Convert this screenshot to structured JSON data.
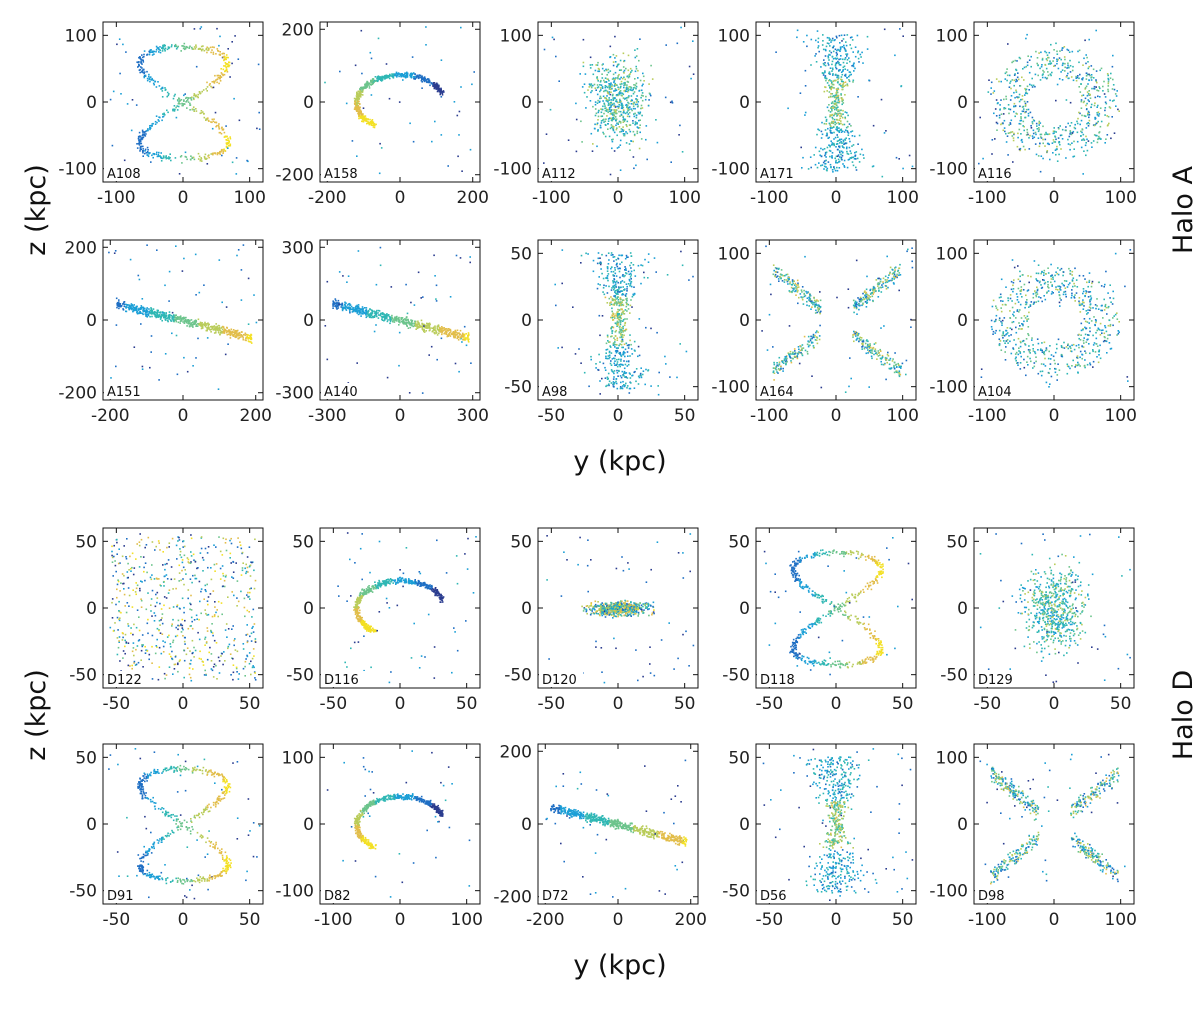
{
  "figure": {
    "type": "scatter-grid",
    "colormap": [
      "#2b3c8f",
      "#1f6fc4",
      "#1b9fd6",
      "#2fb7b4",
      "#6cc48c",
      "#b9cc5a",
      "#e2bd4a",
      "#f3e024"
    ]
  },
  "chart_data": [
    {
      "type": "scatter",
      "group": "Halo A",
      "group_label": "Halo A",
      "xlabel": "y (kpc)",
      "ylabel": "z (kpc)",
      "panels": [
        {
          "id": "A108",
          "xlim": [
            -120,
            120
          ],
          "ylim": [
            -120,
            120
          ],
          "xticks": [
            -100,
            0,
            100
          ],
          "yticks": [
            -100,
            0,
            100
          ],
          "xtick_labels": [
            "-100",
            "0",
            "100"
          ],
          "ytick_labels": [
            "-100",
            "0",
            "100"
          ],
          "pattern": "loops"
        },
        {
          "id": "A158",
          "xlim": [
            -220,
            220
          ],
          "ylim": [
            -220,
            220
          ],
          "xticks": [
            -200,
            0,
            200
          ],
          "yticks": [
            -200,
            0,
            200
          ],
          "xtick_labels": [
            "-200",
            "0",
            "200"
          ],
          "ytick_labels": [
            "-200",
            "0",
            "200"
          ],
          "pattern": "arc"
        },
        {
          "id": "A112",
          "xlim": [
            -120,
            120
          ],
          "ylim": [
            -120,
            120
          ],
          "xticks": [
            -100,
            0,
            100
          ],
          "yticks": [
            -100,
            0,
            100
          ],
          "xtick_labels": [
            "-100",
            "0",
            "100"
          ],
          "ytick_labels": [
            "-100",
            "0",
            "100"
          ],
          "pattern": "blob"
        },
        {
          "id": "A171",
          "xlim": [
            -120,
            120
          ],
          "ylim": [
            -120,
            120
          ],
          "xticks": [
            -100,
            0,
            100
          ],
          "yticks": [
            -100,
            0,
            100
          ],
          "xtick_labels": [
            "-100",
            "0",
            "100"
          ],
          "ytick_labels": [
            "-100",
            "0",
            "100"
          ],
          "pattern": "hourglass"
        },
        {
          "id": "A116",
          "xlim": [
            -120,
            120
          ],
          "ylim": [
            -120,
            120
          ],
          "xticks": [
            -100,
            0,
            100
          ],
          "yticks": [
            -100,
            0,
            100
          ],
          "xtick_labels": [
            "-100",
            "0",
            "100"
          ],
          "ytick_labels": [
            "-100",
            "0",
            "100"
          ],
          "pattern": "shell"
        }
      ]
    },
    {
      "type": "scatter",
      "group": "Halo A",
      "xlabel": "y (kpc)",
      "panels": [
        {
          "id": "A151",
          "xlim": [
            -220,
            220
          ],
          "ylim": [
            -220,
            220
          ],
          "xticks": [
            -200,
            0,
            200
          ],
          "yticks": [
            -200,
            0,
            200
          ],
          "xtick_labels": [
            "-200",
            "0",
            "200"
          ],
          "ytick_labels": [
            "-200",
            "0",
            "200"
          ],
          "pattern": "stream"
        },
        {
          "id": "A140",
          "xlim": [
            -330,
            330
          ],
          "ylim": [
            -330,
            330
          ],
          "xticks": [
            -300,
            0,
            300
          ],
          "yticks": [
            -300,
            0,
            300
          ],
          "xtick_labels": [
            "-300",
            "0",
            "300"
          ],
          "ytick_labels": [
            "-300",
            "0",
            "300"
          ],
          "pattern": "stream"
        },
        {
          "id": "A98",
          "xlim": [
            -60,
            60
          ],
          "ylim": [
            -60,
            60
          ],
          "xticks": [
            -50,
            0,
            50
          ],
          "yticks": [
            -50,
            0,
            50
          ],
          "xtick_labels": [
            "-50",
            "0",
            "50"
          ],
          "ytick_labels": [
            "-50",
            "0",
            "50"
          ],
          "pattern": "hourglass"
        },
        {
          "id": "A164",
          "xlim": [
            -120,
            120
          ],
          "ylim": [
            -120,
            120
          ],
          "xticks": [
            -100,
            0,
            100
          ],
          "yticks": [
            -100,
            0,
            100
          ],
          "xtick_labels": [
            "-100",
            "0",
            "100"
          ],
          "ytick_labels": [
            "-100",
            "0",
            "100"
          ],
          "pattern": "butterfly"
        },
        {
          "id": "A104",
          "xlim": [
            -120,
            120
          ],
          "ylim": [
            -120,
            120
          ],
          "xticks": [
            -100,
            0,
            100
          ],
          "yticks": [
            -100,
            0,
            100
          ],
          "xtick_labels": [
            "-100",
            "0",
            "100"
          ],
          "ytick_labels": [
            "-100",
            "0",
            "100"
          ],
          "pattern": "shell"
        }
      ]
    },
    {
      "type": "scatter",
      "group": "Halo D",
      "group_label": "Halo D",
      "xlabel": "y (kpc)",
      "ylabel": "z (kpc)",
      "panels": [
        {
          "id": "D122",
          "xlim": [
            -60,
            60
          ],
          "ylim": [
            -60,
            60
          ],
          "xticks": [
            -50,
            0,
            50
          ],
          "yticks": [
            -50,
            0,
            50
          ],
          "xtick_labels": [
            "-50",
            "0",
            "50"
          ],
          "ytick_labels": [
            "-50",
            "0",
            "50"
          ],
          "pattern": "sparse"
        },
        {
          "id": "D116",
          "xlim": [
            -60,
            60
          ],
          "ylim": [
            -60,
            60
          ],
          "xticks": [
            -50,
            0,
            50
          ],
          "yticks": [
            -50,
            0,
            50
          ],
          "xtick_labels": [
            "-50",
            "0",
            "50"
          ],
          "ytick_labels": [
            "-50",
            "0",
            "50"
          ],
          "pattern": "arc"
        },
        {
          "id": "D120",
          "xlim": [
            -60,
            60
          ],
          "ylim": [
            -60,
            60
          ],
          "xticks": [
            -50,
            0,
            50
          ],
          "yticks": [
            -50,
            0,
            50
          ],
          "xtick_labels": [
            "-50",
            "0",
            "50"
          ],
          "ytick_labels": [
            "-50",
            "0",
            "50"
          ],
          "pattern": "disk"
        },
        {
          "id": "D118",
          "xlim": [
            -60,
            60
          ],
          "ylim": [
            -60,
            60
          ],
          "xticks": [
            -50,
            0,
            50
          ],
          "yticks": [
            -50,
            0,
            50
          ],
          "xtick_labels": [
            "-50",
            "0",
            "50"
          ],
          "ytick_labels": [
            "-50",
            "0",
            "50"
          ],
          "pattern": "loops"
        },
        {
          "id": "D129",
          "xlim": [
            -60,
            60
          ],
          "ylim": [
            -60,
            60
          ],
          "xticks": [
            -50,
            0,
            50
          ],
          "yticks": [
            -50,
            0,
            50
          ],
          "xtick_labels": [
            "-50",
            "0",
            "50"
          ],
          "ytick_labels": [
            "-50",
            "0",
            "50"
          ],
          "pattern": "blob"
        }
      ]
    },
    {
      "type": "scatter",
      "group": "Halo D",
      "xlabel": "y (kpc)",
      "panels": [
        {
          "id": "D91",
          "xlim": [
            -60,
            60
          ],
          "ylim": [
            -60,
            60
          ],
          "xticks": [
            -50,
            0,
            50
          ],
          "yticks": [
            -50,
            0,
            50
          ],
          "xtick_labels": [
            "-50",
            "0",
            "50"
          ],
          "ytick_labels": [
            "-50",
            "0",
            "50"
          ],
          "pattern": "loops"
        },
        {
          "id": "D82",
          "xlim": [
            -120,
            120
          ],
          "ylim": [
            -120,
            120
          ],
          "xticks": [
            -100,
            0,
            100
          ],
          "yticks": [
            -100,
            0,
            100
          ],
          "xtick_labels": [
            "-100",
            "0",
            "100"
          ],
          "ytick_labels": [
            "-100",
            "0",
            "100"
          ],
          "pattern": "arc"
        },
        {
          "id": "D72",
          "xlim": [
            -220,
            220
          ],
          "ylim": [
            -220,
            220
          ],
          "xticks": [
            -200,
            0,
            200
          ],
          "yticks": [
            -200,
            0,
            200
          ],
          "xtick_labels": [
            "-200",
            "0",
            "200"
          ],
          "ytick_labels": [
            "-200",
            "0",
            "200"
          ],
          "pattern": "stream"
        },
        {
          "id": "D56",
          "xlim": [
            -60,
            60
          ],
          "ylim": [
            -60,
            60
          ],
          "xticks": [
            -50,
            0,
            50
          ],
          "yticks": [
            -50,
            0,
            50
          ],
          "xtick_labels": [
            "-50",
            "0",
            "50"
          ],
          "ytick_labels": [
            "-50",
            "0",
            "50"
          ],
          "pattern": "hourglass"
        },
        {
          "id": "D98",
          "xlim": [
            -120,
            120
          ],
          "ylim": [
            -120,
            120
          ],
          "xticks": [
            -100,
            0,
            100
          ],
          "yticks": [
            -100,
            0,
            100
          ],
          "xtick_labels": [
            "-100",
            "0",
            "100"
          ],
          "ytick_labels": [
            "-100",
            "0",
            "100"
          ],
          "pattern": "butterfly"
        }
      ]
    }
  ]
}
